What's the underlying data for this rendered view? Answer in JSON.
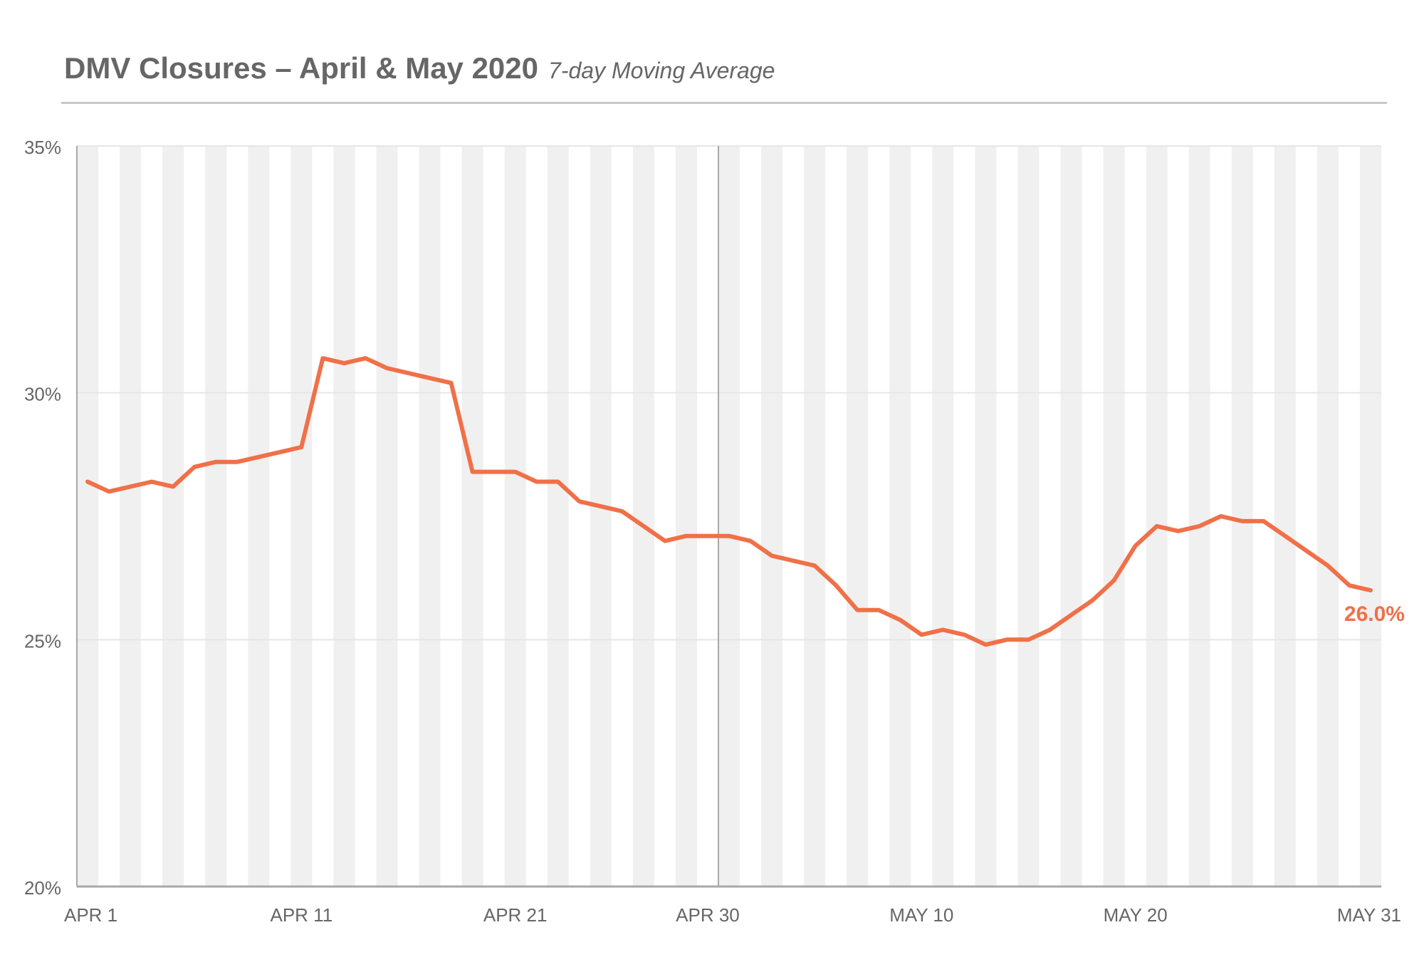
{
  "title": "DMV Closures – April & May 2020",
  "subtitle": "7-day Moving Average",
  "colors": {
    "line": "#F07048",
    "text": "#666666",
    "band": "#F0F0F0",
    "grid": "#E6E6E6",
    "axis": "#A8A8A8"
  },
  "chart_data": {
    "type": "line",
    "title": "DMV Closures – April & May 2020",
    "subtitle": "7-day Moving Average",
    "xlabel": "",
    "ylabel": "",
    "ylim": [
      20,
      35
    ],
    "y_ticks": [
      20,
      25,
      30,
      35
    ],
    "y_tick_labels": [
      "20%",
      "25%",
      "30%",
      "35%"
    ],
    "x_tick_labels": [
      {
        "day": 1,
        "label": "APR 1"
      },
      {
        "day": 11,
        "label": "APR 11"
      },
      {
        "day": 21,
        "label": "APR 21"
      },
      {
        "day": 30,
        "label": "APR 30"
      },
      {
        "day": 40,
        "label": "MAY 10"
      },
      {
        "day": 50,
        "label": "MAY 20"
      },
      {
        "day": 61,
        "label": "MAY 31"
      }
    ],
    "month_divider_day": 30,
    "alternating_day_shading": true,
    "grid": true,
    "end_label": "26.0%",
    "series": [
      {
        "values": [
          28.2,
          28.0,
          28.1,
          28.2,
          28.1,
          28.5,
          28.6,
          28.6,
          28.7,
          28.8,
          28.9,
          30.7,
          30.6,
          30.7,
          30.5,
          30.4,
          30.3,
          30.2,
          28.4,
          28.4,
          28.4,
          28.2,
          28.2,
          27.8,
          27.7,
          27.6,
          27.3,
          27.0,
          27.1,
          27.1,
          27.1,
          27.0,
          26.7,
          26.6,
          26.5,
          26.1,
          25.6,
          25.6,
          25.4,
          25.1,
          25.2,
          25.1,
          24.9,
          25.0,
          25.0,
          25.2,
          25.5,
          25.8,
          26.2,
          26.9,
          27.3,
          27.2,
          27.3,
          27.5,
          27.4,
          27.4,
          27.1,
          26.8,
          26.5,
          26.1,
          26.0
        ]
      }
    ]
  }
}
